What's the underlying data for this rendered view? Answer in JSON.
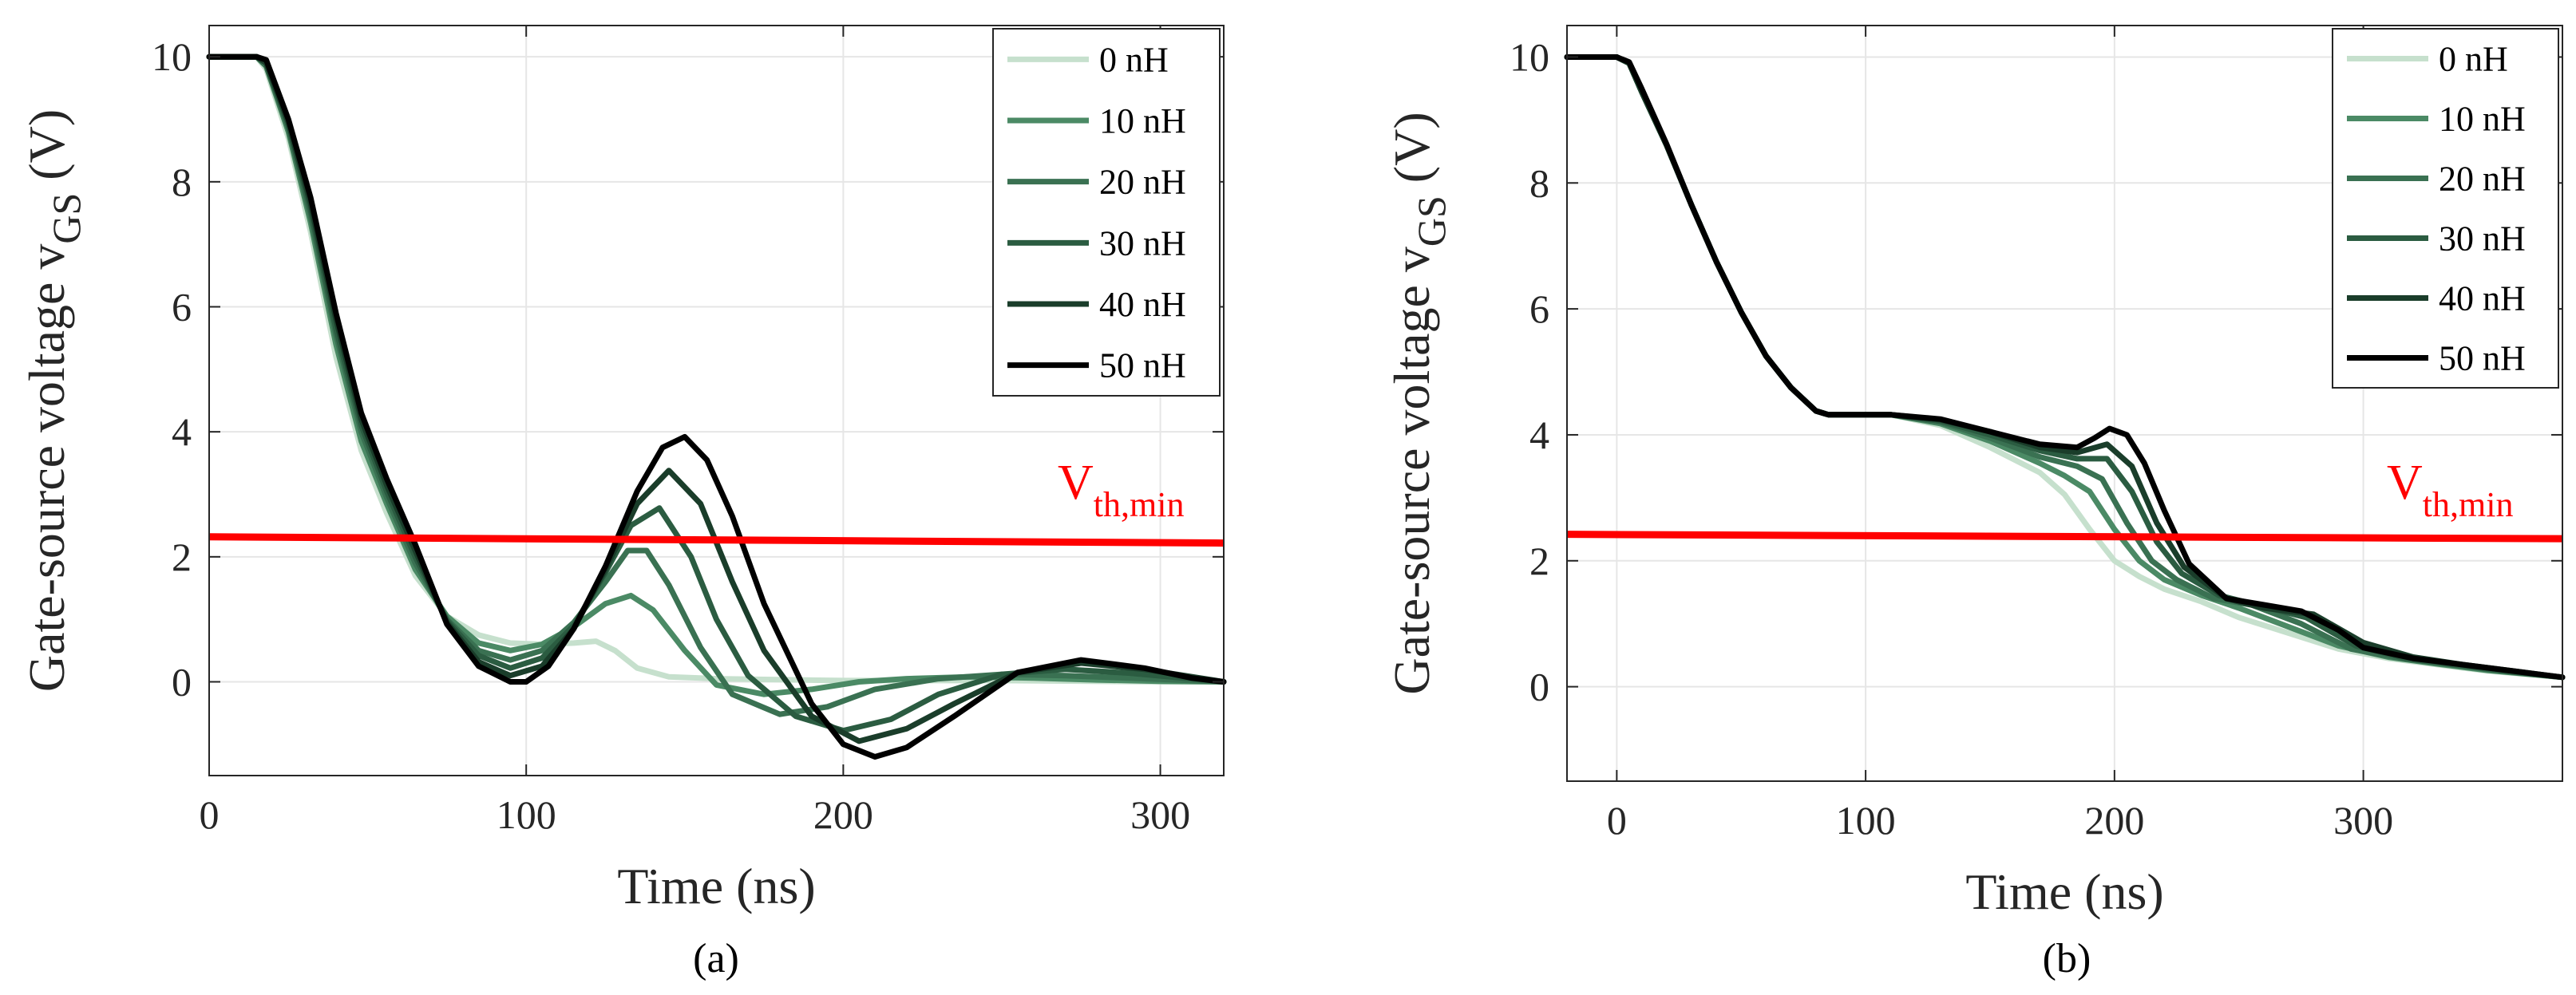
{
  "colors": {
    "threshold": "#ff0000",
    "series": [
      "#c6e0cd",
      "#4b8a65",
      "#3a7152",
      "#2b5c41",
      "#1a3d2a",
      "#000000"
    ]
  },
  "chart_data": [
    {
      "type": "line",
      "subtitle": "(a)",
      "xlabel": "Time (ns)",
      "ylabel": "Gate-source voltage v",
      "ylabel_sub": "GS",
      "ylabel_unit": " (V)",
      "xlim": [
        0,
        320
      ],
      "ylim": [
        -1.5,
        10.5
      ],
      "xticks": [
        0,
        100,
        200,
        300
      ],
      "yticks": [
        0,
        2,
        4,
        6,
        8,
        10
      ],
      "grid": true,
      "legend_position": "top-right",
      "threshold": {
        "label": "V",
        "label_sub": "th,min",
        "points": [
          [
            0,
            2.32
          ],
          [
            320,
            2.22
          ]
        ]
      },
      "series": [
        {
          "name": "0 nH",
          "x": [
            0,
            15,
            18,
            25,
            32,
            40,
            48,
            56,
            65,
            75,
            85,
            95,
            105,
            115,
            122,
            128,
            135,
            145,
            160,
            200,
            250,
            300,
            320
          ],
          "values": [
            10,
            10,
            9.8,
            8.7,
            7.2,
            5.2,
            3.7,
            2.7,
            1.7,
            1.05,
            0.75,
            0.62,
            0.6,
            0.62,
            0.65,
            0.5,
            0.22,
            0.08,
            0.05,
            0.02,
            0.02,
            0,
            0
          ]
        },
        {
          "name": "10 nH",
          "x": [
            0,
            15,
            18,
            25,
            32,
            40,
            48,
            56,
            65,
            75,
            85,
            95,
            105,
            115,
            125,
            133,
            140,
            150,
            160,
            175,
            190,
            205,
            220,
            240,
            260,
            280,
            300,
            320
          ],
          "values": [
            10,
            10,
            9.85,
            8.8,
            7.35,
            5.4,
            3.85,
            2.85,
            1.8,
            1.05,
            0.62,
            0.5,
            0.6,
            0.88,
            1.25,
            1.38,
            1.15,
            0.5,
            -0.05,
            -0.2,
            -0.12,
            0,
            0.05,
            0.08,
            0.06,
            0.03,
            0.01,
            0
          ]
        },
        {
          "name": "20 nH",
          "x": [
            0,
            15,
            18,
            25,
            32,
            40,
            48,
            56,
            65,
            75,
            85,
            95,
            105,
            115,
            125,
            132,
            138,
            145,
            155,
            165,
            180,
            195,
            210,
            230,
            250,
            270,
            290,
            310,
            320
          ],
          "values": [
            10,
            10,
            9.85,
            8.85,
            7.45,
            5.55,
            4.0,
            2.95,
            1.9,
            1.0,
            0.5,
            0.35,
            0.5,
            0.95,
            1.6,
            2.1,
            2.1,
            1.55,
            0.55,
            -0.2,
            -0.52,
            -0.4,
            -0.12,
            0.05,
            0.12,
            0.1,
            0.06,
            0.02,
            0
          ]
        },
        {
          "name": "30 nH",
          "x": [
            0,
            15,
            18,
            25,
            32,
            40,
            48,
            56,
            65,
            75,
            85,
            95,
            105,
            115,
            125,
            133,
            142,
            152,
            160,
            170,
            185,
            200,
            215,
            230,
            250,
            270,
            290,
            310,
            320
          ],
          "values": [
            10,
            10,
            9.9,
            8.9,
            7.55,
            5.65,
            4.1,
            3.05,
            2.0,
            0.98,
            0.42,
            0.22,
            0.38,
            0.9,
            1.75,
            2.5,
            2.78,
            2.0,
            1.0,
            0.1,
            -0.55,
            -0.78,
            -0.6,
            -0.2,
            0.12,
            0.2,
            0.14,
            0.05,
            0
          ]
        },
        {
          "name": "40 nH",
          "x": [
            0,
            15,
            18,
            25,
            32,
            40,
            48,
            56,
            65,
            75,
            85,
            95,
            105,
            115,
            125,
            135,
            145,
            155,
            165,
            175,
            190,
            205,
            220,
            235,
            255,
            275,
            295,
            310,
            320
          ],
          "values": [
            10,
            10,
            9.9,
            8.95,
            7.65,
            5.8,
            4.2,
            3.15,
            2.1,
            0.95,
            0.32,
            0.1,
            0.25,
            0.85,
            1.8,
            2.85,
            3.38,
            2.85,
            1.6,
            0.5,
            -0.55,
            -0.95,
            -0.75,
            -0.35,
            0.15,
            0.3,
            0.2,
            0.08,
            0
          ]
        },
        {
          "name": "50 nH",
          "x": [
            0,
            15,
            18,
            25,
            32,
            40,
            48,
            56,
            65,
            75,
            85,
            95,
            100,
            107,
            115,
            125,
            135,
            143,
            150,
            157,
            165,
            175,
            190,
            200,
            210,
            220,
            235,
            255,
            275,
            295,
            310,
            320
          ],
          "values": [
            10,
            10,
            9.95,
            9.0,
            7.75,
            5.9,
            4.3,
            3.25,
            2.2,
            0.92,
            0.25,
            0,
            0,
            0.25,
            0.85,
            1.85,
            3.05,
            3.75,
            3.92,
            3.55,
            2.65,
            1.25,
            -0.35,
            -1.0,
            -1.2,
            -1.05,
            -0.55,
            0.15,
            0.35,
            0.22,
            0.06,
            0
          ]
        }
      ]
    },
    {
      "type": "line",
      "subtitle": "(b)",
      "xlabel": "Time (ns)",
      "ylabel": "Gate-source voltage v",
      "ylabel_sub": "GS",
      "ylabel_unit": " (V)",
      "xlim": [
        -20,
        380
      ],
      "ylim": [
        -1.5,
        10.5
      ],
      "xticks": [
        0,
        100,
        200,
        300
      ],
      "yticks": [
        0,
        2,
        4,
        6,
        8,
        10
      ],
      "grid": true,
      "legend_position": "top-right",
      "threshold": {
        "label": "V",
        "label_sub": "th,min",
        "points": [
          [
            -20,
            2.42
          ],
          [
            380,
            2.35
          ]
        ]
      },
      "series": [
        {
          "name": "0 nH",
          "x": [
            -20,
            0,
            5,
            10,
            20,
            30,
            40,
            50,
            60,
            70,
            80,
            85,
            110,
            130,
            150,
            170,
            180,
            190,
            200,
            210,
            220,
            235,
            250,
            270,
            290,
            310,
            330,
            350,
            380
          ],
          "values": [
            10,
            10,
            9.9,
            9.45,
            8.6,
            7.65,
            6.75,
            5.95,
            5.25,
            4.75,
            4.38,
            4.32,
            4.32,
            4.15,
            3.8,
            3.4,
            3.05,
            2.5,
            2.0,
            1.75,
            1.55,
            1.35,
            1.1,
            0.85,
            0.6,
            0.45,
            0.35,
            0.25,
            0.15
          ]
        },
        {
          "name": "10 nH",
          "x": [
            -20,
            0,
            5,
            10,
            20,
            30,
            40,
            50,
            60,
            70,
            80,
            85,
            110,
            130,
            150,
            170,
            180,
            190,
            200,
            210,
            220,
            235,
            250,
            270,
            290,
            310,
            330,
            350,
            380
          ],
          "values": [
            10,
            10,
            9.9,
            9.45,
            8.6,
            7.65,
            6.75,
            5.95,
            5.25,
            4.75,
            4.38,
            4.32,
            4.32,
            4.18,
            3.9,
            3.55,
            3.35,
            3.1,
            2.5,
            2.0,
            1.7,
            1.45,
            1.25,
            0.95,
            0.65,
            0.47,
            0.36,
            0.26,
            0.15
          ]
        },
        {
          "name": "20 nH",
          "x": [
            -20,
            0,
            5,
            10,
            20,
            30,
            40,
            50,
            60,
            70,
            80,
            85,
            110,
            130,
            150,
            170,
            185,
            195,
            205,
            215,
            225,
            240,
            255,
            275,
            295,
            315,
            335,
            355,
            380
          ],
          "values": [
            10,
            10,
            9.9,
            9.45,
            8.6,
            7.65,
            6.75,
            5.95,
            5.25,
            4.75,
            4.38,
            4.32,
            4.32,
            4.2,
            3.95,
            3.65,
            3.5,
            3.3,
            2.6,
            2.0,
            1.7,
            1.4,
            1.3,
            1.0,
            0.6,
            0.45,
            0.35,
            0.25,
            0.15
          ]
        },
        {
          "name": "30 nH",
          "x": [
            -20,
            0,
            5,
            10,
            20,
            30,
            40,
            50,
            60,
            70,
            80,
            85,
            110,
            130,
            150,
            170,
            185,
            197,
            207,
            217,
            227,
            242,
            257,
            277,
            297,
            317,
            337,
            357,
            380
          ],
          "values": [
            10,
            10,
            9.9,
            9.45,
            8.6,
            7.65,
            6.75,
            5.95,
            5.25,
            4.75,
            4.38,
            4.32,
            4.32,
            4.22,
            4.0,
            3.75,
            3.62,
            3.62,
            3.1,
            2.3,
            1.8,
            1.45,
            1.3,
            1.1,
            0.65,
            0.45,
            0.35,
            0.25,
            0.15
          ]
        },
        {
          "name": "40 nH",
          "x": [
            -20,
            0,
            5,
            10,
            20,
            30,
            40,
            50,
            60,
            70,
            80,
            85,
            110,
            130,
            150,
            170,
            185,
            197,
            207,
            217,
            228,
            245,
            260,
            280,
            300,
            320,
            340,
            360,
            380
          ],
          "values": [
            10,
            10,
            9.9,
            9.45,
            8.6,
            7.65,
            6.75,
            5.95,
            5.25,
            4.75,
            4.38,
            4.32,
            4.32,
            4.24,
            4.05,
            3.8,
            3.72,
            3.85,
            3.5,
            2.6,
            1.9,
            1.4,
            1.25,
            1.15,
            0.7,
            0.47,
            0.35,
            0.25,
            0.15
          ]
        },
        {
          "name": "50 nH",
          "x": [
            -20,
            0,
            5,
            10,
            20,
            30,
            40,
            50,
            60,
            70,
            80,
            85,
            110,
            130,
            150,
            170,
            185,
            192,
            198,
            205,
            212,
            220,
            230,
            245,
            260,
            275,
            290,
            300,
            320,
            340,
            360,
            380
          ],
          "values": [
            10,
            10,
            9.92,
            9.5,
            8.62,
            7.65,
            6.75,
            5.95,
            5.25,
            4.75,
            4.38,
            4.32,
            4.32,
            4.25,
            4.05,
            3.85,
            3.8,
            3.95,
            4.1,
            4.0,
            3.55,
            2.8,
            1.95,
            1.4,
            1.3,
            1.2,
            0.9,
            0.62,
            0.45,
            0.35,
            0.25,
            0.15
          ]
        }
      ]
    }
  ]
}
